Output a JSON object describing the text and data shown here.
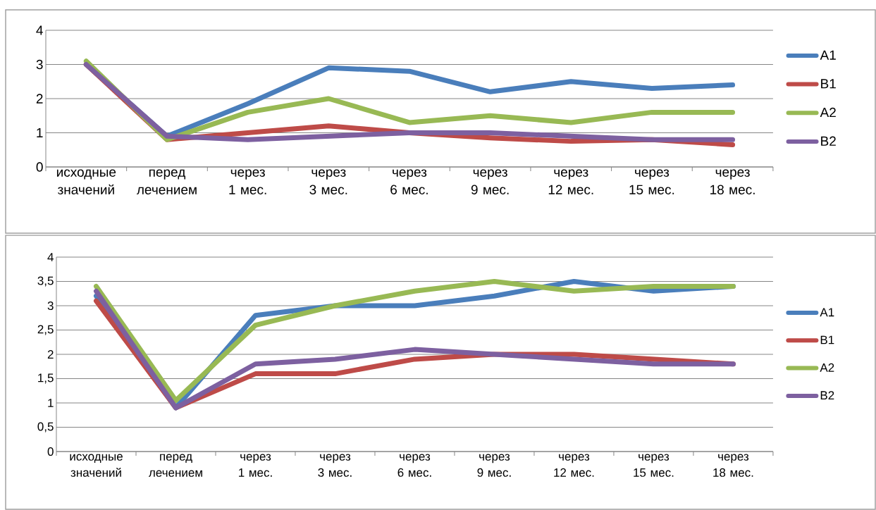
{
  "chart_data": [
    {
      "type": "line",
      "categories": [
        "исходные значений",
        "перед лечением",
        "через 1 мес.",
        "через 3 мес.",
        "через 6 мес.",
        "через 9 мес.",
        "через 12 мес.",
        "через 15 мес.",
        "через 18 мес."
      ],
      "series": [
        {
          "name": "A1",
          "color": "#4a7ebb",
          "values": [
            3.0,
            0.9,
            1.85,
            2.9,
            2.8,
            2.2,
            2.5,
            2.3,
            2.4
          ]
        },
        {
          "name": "B1",
          "color": "#be4b48",
          "values": [
            3.0,
            0.8,
            1.0,
            1.2,
            1.0,
            0.85,
            0.75,
            0.8,
            0.65
          ]
        },
        {
          "name": "A2",
          "color": "#98b954",
          "values": [
            3.1,
            0.8,
            1.6,
            2.0,
            1.3,
            1.5,
            1.3,
            1.6,
            1.6
          ]
        },
        {
          "name": "B2",
          "color": "#7d60a0",
          "values": [
            3.0,
            0.9,
            0.8,
            0.9,
            1.0,
            1.0,
            0.9,
            0.8,
            0.8
          ]
        }
      ],
      "ylim": [
        0,
        4
      ],
      "yticks": [
        0,
        1,
        2,
        3,
        4
      ],
      "grid": "y",
      "legend": "right",
      "marker": "none",
      "line_style": "solid"
    },
    {
      "type": "line",
      "categories": [
        "исходные значений",
        "перед лечением",
        "через 1 мес.",
        "через 3 мес.",
        "через 6 мес.",
        "через 9 мес.",
        "через 12 мес.",
        "через 15 мес.",
        "через 18 мес."
      ],
      "series": [
        {
          "name": "A1",
          "color": "#4a7ebb",
          "values": [
            3.2,
            0.9,
            2.8,
            3.0,
            3.0,
            3.2,
            3.5,
            3.3,
            3.4
          ]
        },
        {
          "name": "B1",
          "color": "#be4b48",
          "values": [
            3.1,
            0.9,
            1.6,
            1.6,
            1.9,
            2.0,
            2.0,
            1.9,
            1.8
          ]
        },
        {
          "name": "A2",
          "color": "#98b954",
          "values": [
            3.4,
            1.05,
            2.6,
            3.0,
            3.3,
            3.5,
            3.3,
            3.4,
            3.4
          ]
        },
        {
          "name": "B2",
          "color": "#7d60a0",
          "values": [
            3.3,
            0.9,
            1.8,
            1.9,
            2.1,
            2.0,
            1.9,
            1.8,
            1.8
          ]
        }
      ],
      "ylim": [
        0,
        4
      ],
      "yticks": [
        0,
        {
          "value": 0.5,
          "label": "0,5"
        },
        1,
        {
          "value": 1.5,
          "label": "1,5"
        },
        2,
        {
          "value": 2.5,
          "label": "2,5"
        },
        3,
        {
          "value": 3.5,
          "label": "3,5"
        },
        4
      ],
      "grid": "y",
      "legend": "right",
      "marker": "none",
      "line_style": "solid"
    }
  ]
}
